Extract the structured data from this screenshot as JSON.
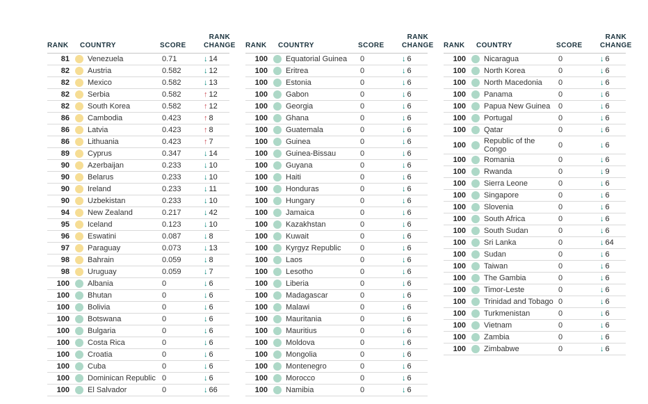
{
  "colors": {
    "background": "#ffffff",
    "header_text": "#1a323d",
    "body_text": "#333333",
    "rank_text": "#242424",
    "row_border": "#d9d9d9",
    "header_border": "#c6c6c6",
    "dot_yellow": "#f6dd94",
    "dot_teal": "#add8c7",
    "arrow_down": "#00857b",
    "arrow_up": "#c9464f"
  },
  "icons": {
    "arrow_down_glyph": "↓",
    "arrow_up_glyph": "↑",
    "dot_yellow_name": "yellow-status-dot",
    "dot_teal_name": "teal-status-dot"
  },
  "headers": {
    "rank": "RANK",
    "country": "COUNTRY",
    "score": "SCORE",
    "rank_change_line1": "RANK",
    "rank_change_line2": "CHANGE"
  },
  "chart_data": {
    "type": "table",
    "columns": [
      "RANK",
      "COUNTRY",
      "SCORE",
      "RANK CHANGE"
    ],
    "row_fields": [
      "rank",
      "country",
      "score",
      "rank_change",
      "change_direction",
      "dot_color"
    ],
    "tables": [
      [
        [
          "81",
          "Venezuela",
          "0.71",
          "14",
          "down",
          "yellow"
        ],
        [
          "82",
          "Austria",
          "0.582",
          "12",
          "down",
          "yellow"
        ],
        [
          "82",
          "Mexico",
          "0.582",
          "13",
          "down",
          "yellow"
        ],
        [
          "82",
          "Serbia",
          "0.582",
          "12",
          "up",
          "yellow"
        ],
        [
          "82",
          "South Korea",
          "0.582",
          "12",
          "up",
          "yellow"
        ],
        [
          "86",
          "Cambodia",
          "0.423",
          "8",
          "up",
          "yellow"
        ],
        [
          "86",
          "Latvia",
          "0.423",
          "8",
          "up",
          "yellow"
        ],
        [
          "86",
          "Lithuania",
          "0.423",
          "7",
          "up",
          "yellow"
        ],
        [
          "89",
          "Cyprus",
          "0.347",
          "14",
          "down",
          "yellow"
        ],
        [
          "90",
          "Azerbaijan",
          "0.233",
          "10",
          "down",
          "yellow"
        ],
        [
          "90",
          "Belarus",
          "0.233",
          "10",
          "down",
          "yellow"
        ],
        [
          "90",
          "Ireland",
          "0.233",
          "11",
          "down",
          "yellow"
        ],
        [
          "90",
          "Uzbekistan",
          "0.233",
          "10",
          "down",
          "yellow"
        ],
        [
          "94",
          "New Zealand",
          "0.217",
          "42",
          "down",
          "yellow"
        ],
        [
          "95",
          "Iceland",
          "0.123",
          "10",
          "down",
          "yellow"
        ],
        [
          "96",
          "Eswatini",
          "0.087",
          "8",
          "down",
          "yellow"
        ],
        [
          "97",
          "Paraguay",
          "0.073",
          "13",
          "down",
          "yellow"
        ],
        [
          "98",
          "Bahrain",
          "0.059",
          "8",
          "down",
          "yellow"
        ],
        [
          "98",
          "Uruguay",
          "0.059",
          "7",
          "down",
          "yellow"
        ],
        [
          "100",
          "Albania",
          "0",
          "6",
          "down",
          "teal"
        ],
        [
          "100",
          "Bhutan",
          "0",
          "6",
          "down",
          "teal"
        ],
        [
          "100",
          "Bolivia",
          "0",
          "6",
          "down",
          "teal"
        ],
        [
          "100",
          "Botswana",
          "0",
          "6",
          "down",
          "teal"
        ],
        [
          "100",
          "Bulgaria",
          "0",
          "6",
          "down",
          "teal"
        ],
        [
          "100",
          "Costa Rica",
          "0",
          "6",
          "down",
          "teal"
        ],
        [
          "100",
          "Croatia",
          "0",
          "6",
          "down",
          "teal"
        ],
        [
          "100",
          "Cuba",
          "0",
          "6",
          "down",
          "teal"
        ],
        [
          "100",
          "Dominican Republic",
          "0",
          "6",
          "down",
          "teal"
        ],
        [
          "100",
          "El Salvador",
          "0",
          "66",
          "down",
          "teal"
        ]
      ],
      [
        [
          "100",
          "Equatorial Guinea",
          "0",
          "6",
          "down",
          "teal"
        ],
        [
          "100",
          "Eritrea",
          "0",
          "6",
          "down",
          "teal"
        ],
        [
          "100",
          "Estonia",
          "0",
          "6",
          "down",
          "teal"
        ],
        [
          "100",
          "Gabon",
          "0",
          "6",
          "down",
          "teal"
        ],
        [
          "100",
          "Georgia",
          "0",
          "6",
          "down",
          "teal"
        ],
        [
          "100",
          "Ghana",
          "0",
          "6",
          "down",
          "teal"
        ],
        [
          "100",
          "Guatemala",
          "0",
          "6",
          "down",
          "teal"
        ],
        [
          "100",
          "Guinea",
          "0",
          "6",
          "down",
          "teal"
        ],
        [
          "100",
          "Guinea-Bissau",
          "0",
          "6",
          "down",
          "teal"
        ],
        [
          "100",
          "Guyana",
          "0",
          "6",
          "down",
          "teal"
        ],
        [
          "100",
          "Haiti",
          "0",
          "6",
          "down",
          "teal"
        ],
        [
          "100",
          "Honduras",
          "0",
          "6",
          "down",
          "teal"
        ],
        [
          "100",
          "Hungary",
          "0",
          "6",
          "down",
          "teal"
        ],
        [
          "100",
          "Jamaica",
          "0",
          "6",
          "down",
          "teal"
        ],
        [
          "100",
          "Kazakhstan",
          "0",
          "6",
          "down",
          "teal"
        ],
        [
          "100",
          "Kuwait",
          "0",
          "6",
          "down",
          "teal"
        ],
        [
          "100",
          "Kyrgyz Republic",
          "0",
          "6",
          "down",
          "teal"
        ],
        [
          "100",
          "Laos",
          "0",
          "6",
          "down",
          "teal"
        ],
        [
          "100",
          "Lesotho",
          "0",
          "6",
          "down",
          "teal"
        ],
        [
          "100",
          "Liberia",
          "0",
          "6",
          "down",
          "teal"
        ],
        [
          "100",
          "Madagascar",
          "0",
          "6",
          "down",
          "teal"
        ],
        [
          "100",
          "Malawi",
          "0",
          "6",
          "down",
          "teal"
        ],
        [
          "100",
          "Mauritania",
          "0",
          "6",
          "down",
          "teal"
        ],
        [
          "100",
          "Mauritius",
          "0",
          "6",
          "down",
          "teal"
        ],
        [
          "100",
          "Moldova",
          "0",
          "6",
          "down",
          "teal"
        ],
        [
          "100",
          "Mongolia",
          "0",
          "6",
          "down",
          "teal"
        ],
        [
          "100",
          "Montenegro",
          "0",
          "6",
          "down",
          "teal"
        ],
        [
          "100",
          "Morocco",
          "0",
          "6",
          "down",
          "teal"
        ],
        [
          "100",
          "Namibia",
          "0",
          "6",
          "down",
          "teal"
        ]
      ],
      [
        [
          "100",
          "Nicaragua",
          "0",
          "6",
          "down",
          "teal"
        ],
        [
          "100",
          "North Korea",
          "0",
          "6",
          "down",
          "teal"
        ],
        [
          "100",
          "North Macedonia",
          "0",
          "6",
          "down",
          "teal"
        ],
        [
          "100",
          "Panama",
          "0",
          "6",
          "down",
          "teal"
        ],
        [
          "100",
          "Papua New Guinea",
          "0",
          "6",
          "down",
          "teal"
        ],
        [
          "100",
          "Portugal",
          "0",
          "6",
          "down",
          "teal"
        ],
        [
          "100",
          "Qatar",
          "0",
          "6",
          "down",
          "teal"
        ],
        [
          "100",
          "Republic of the Congo",
          "0",
          "6",
          "down",
          "teal"
        ],
        [
          "100",
          "Romania",
          "0",
          "6",
          "down",
          "teal"
        ],
        [
          "100",
          "Rwanda",
          "0",
          "9",
          "down",
          "teal"
        ],
        [
          "100",
          "Sierra Leone",
          "0",
          "6",
          "down",
          "teal"
        ],
        [
          "100",
          "Singapore",
          "0",
          "6",
          "down",
          "teal"
        ],
        [
          "100",
          "Slovenia",
          "0",
          "6",
          "down",
          "teal"
        ],
        [
          "100",
          "South Africa",
          "0",
          "6",
          "down",
          "teal"
        ],
        [
          "100",
          "South Sudan",
          "0",
          "6",
          "down",
          "teal"
        ],
        [
          "100",
          "Sri Lanka",
          "0",
          "64",
          "down",
          "teal"
        ],
        [
          "100",
          "Sudan",
          "0",
          "6",
          "down",
          "teal"
        ],
        [
          "100",
          "Taiwan",
          "0",
          "6",
          "down",
          "teal"
        ],
        [
          "100",
          "The Gambia",
          "0",
          "6",
          "down",
          "teal"
        ],
        [
          "100",
          "Timor-Leste",
          "0",
          "6",
          "down",
          "teal"
        ],
        [
          "100",
          "Trinidad and Tobago",
          "0",
          "6",
          "down",
          "teal"
        ],
        [
          "100",
          "Turkmenistan",
          "0",
          "6",
          "down",
          "teal"
        ],
        [
          "100",
          "Vietnam",
          "0",
          "6",
          "down",
          "teal"
        ],
        [
          "100",
          "Zambia",
          "0",
          "6",
          "down",
          "teal"
        ],
        [
          "100",
          "Zimbabwe",
          "0",
          "6",
          "down",
          "teal"
        ]
      ]
    ]
  }
}
